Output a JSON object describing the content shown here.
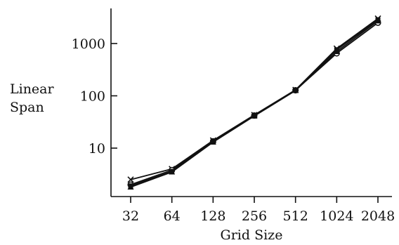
{
  "chart_data": {
    "type": "line",
    "title": "",
    "xlabel": "Grid Size",
    "ylabel_lines": [
      "Linear",
      "Span"
    ],
    "y_scale": "log",
    "ylim": [
      1.3,
      5000
    ],
    "x": [
      32,
      64,
      128,
      256,
      512,
      1024,
      2048
    ],
    "x_tick_labels": [
      "32",
      "64",
      "128",
      "256",
      "512",
      "1024",
      "2048"
    ],
    "y_ticks": [
      10,
      100,
      1000
    ],
    "y_tick_labels": [
      "10",
      "100",
      "1000"
    ],
    "grid": false,
    "legend": "none",
    "color": "#111111",
    "series": [
      {
        "marker": "x",
        "values": [
          2.5,
          4.0,
          14,
          43,
          130,
          800,
          3000
        ]
      },
      {
        "marker": "circle",
        "values": [
          2.0,
          3.8,
          13.5,
          42,
          128,
          650,
          2500
        ]
      },
      {
        "marker": "triangle",
        "values": [
          1.8,
          3.5,
          13,
          41,
          126,
          700,
          2700
        ]
      },
      {
        "marker": "square",
        "values": [
          1.9,
          3.6,
          13.5,
          42,
          127,
          760,
          2850
        ]
      }
    ]
  }
}
